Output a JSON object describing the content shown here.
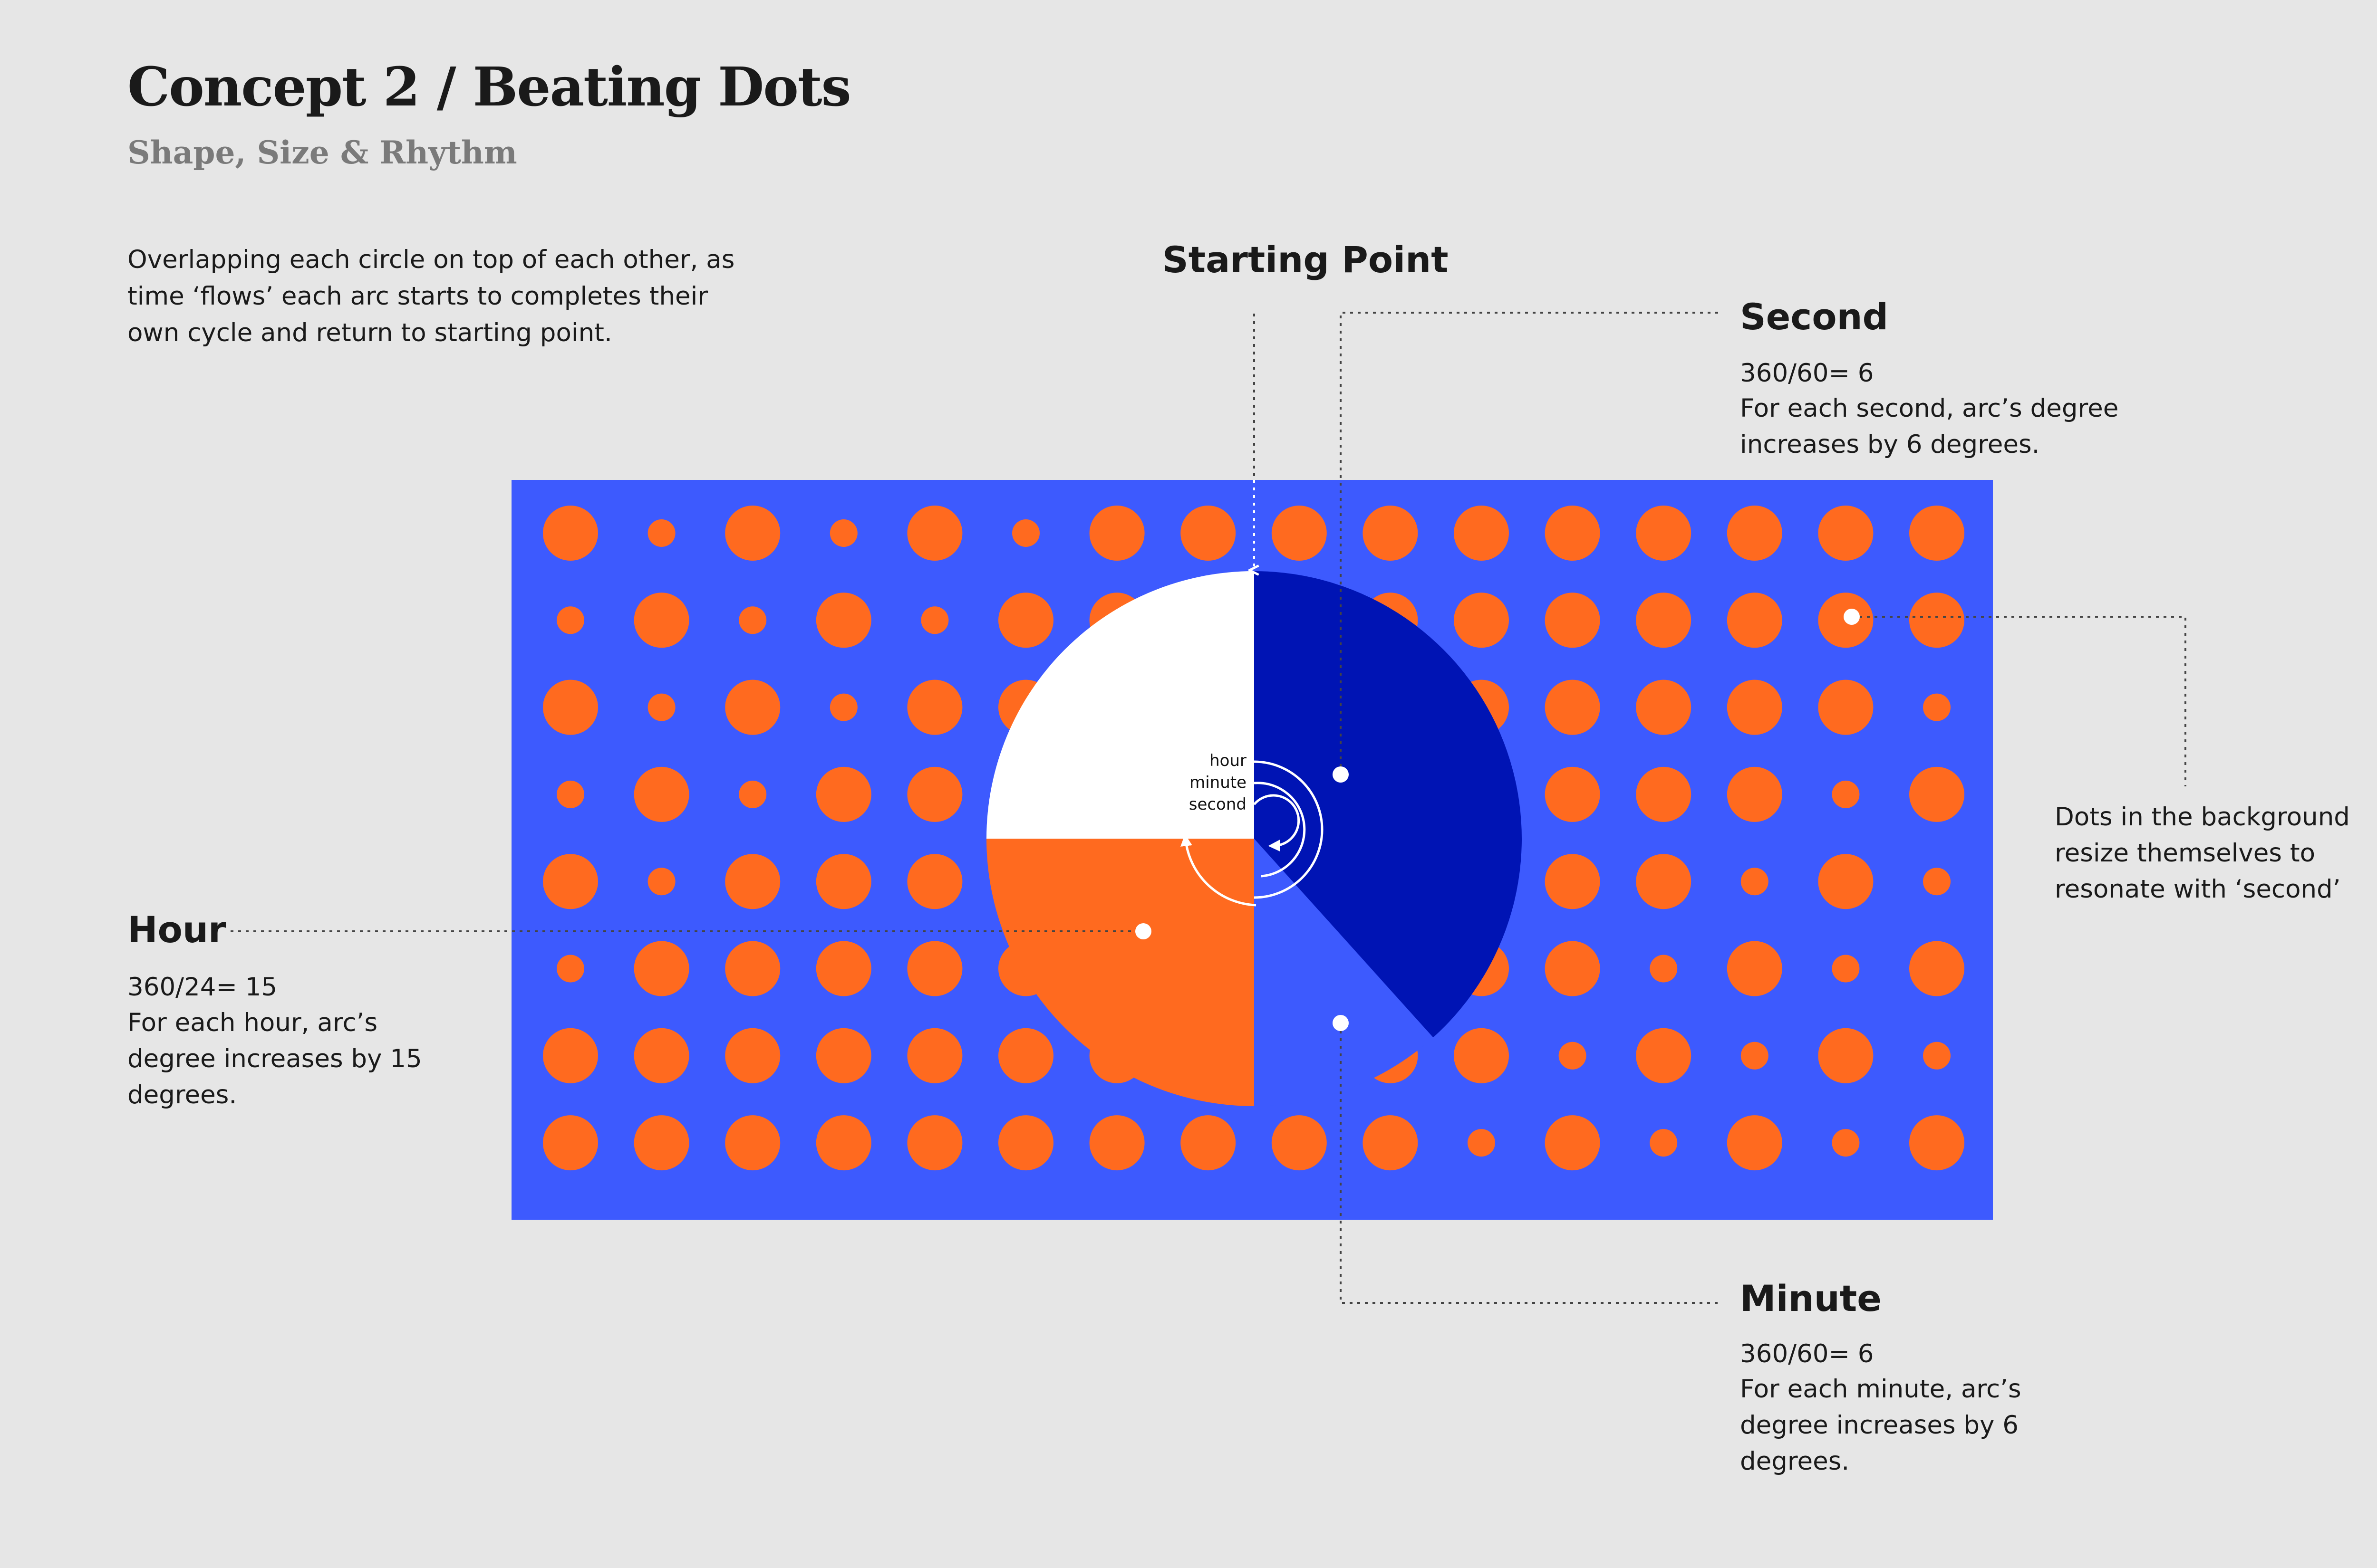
{
  "header": {
    "title": "Concept 2 / Beating Dots",
    "subtitle": "Shape, Size & Rhythm",
    "intro": "Overlapping each circle on top of each other, as time ‘flows’ each arc starts to completes their own cycle and return to starting point."
  },
  "annotations": {
    "starting_point": "Starting Point",
    "second": {
      "label": "Second",
      "formula": "360/60= 6",
      "description": "For each second, arc’s degree increases by 6 degrees."
    },
    "hour": {
      "label": "Hour",
      "formula": "360/24= 15",
      "description": "For each hour, arc’s degree increases by 15 degrees."
    },
    "minute": {
      "label": "Minute",
      "formula": "360/60= 6",
      "description": "For each minute, arc’s degree increases by 6 degrees."
    },
    "dots_note": "Dots in the background resize themselves to resonate with ‘second’"
  },
  "clock": {
    "legend": [
      "hour",
      "minute",
      "second"
    ],
    "hour_arc_degrees": 90,
    "minute_arc_degrees": 180,
    "second_arc_degrees": 138
  },
  "dot_grid": {
    "rows": 8,
    "cols": 16,
    "sizes": [
      [
        "L",
        "S",
        "L",
        "S",
        "L",
        "S",
        "L",
        "L",
        "L",
        "L",
        "L",
        "L",
        "L",
        "L",
        "L",
        "L"
      ],
      [
        "S",
        "L",
        "S",
        "L",
        "S",
        "L",
        "L",
        "L",
        "L",
        "L",
        "L",
        "L",
        "L",
        "L",
        "L",
        "L"
      ],
      [
        "L",
        "S",
        "L",
        "S",
        "L",
        "L",
        "L",
        "L",
        "L",
        "L",
        "L",
        "L",
        "L",
        "L",
        "L",
        "S"
      ],
      [
        "S",
        "L",
        "S",
        "L",
        "L",
        "L",
        "L",
        "L",
        "L",
        "L",
        "L",
        "L",
        "L",
        "L",
        "S",
        "L"
      ],
      [
        "L",
        "S",
        "L",
        "L",
        "L",
        "L",
        "L",
        "L",
        "L",
        "L",
        "L",
        "L",
        "L",
        "S",
        "L",
        "S"
      ],
      [
        "S",
        "L",
        "L",
        "L",
        "L",
        "L",
        "L",
        "L",
        "L",
        "L",
        "L",
        "L",
        "S",
        "L",
        "S",
        "L"
      ],
      [
        "L",
        "L",
        "L",
        "L",
        "L",
        "L",
        "L",
        "L",
        "L",
        "L",
        "L",
        "S",
        "L",
        "S",
        "L",
        "S"
      ],
      [
        "L",
        "L",
        "L",
        "L",
        "L",
        "L",
        "L",
        "L",
        "L",
        "L",
        "S",
        "L",
        "S",
        "L",
        "S",
        "L"
      ]
    ]
  },
  "colors": {
    "background": "#e6e6e6",
    "panel": "#3d5afe",
    "dot": "#ff6a1f",
    "hour": "#ff6a1f",
    "minute": "#3d5afe",
    "second": "#0014b4",
    "clock_face": "#ffffff",
    "text": "#1a1a1a",
    "subtitle": "#7a7a7a",
    "guide": "#444444"
  }
}
